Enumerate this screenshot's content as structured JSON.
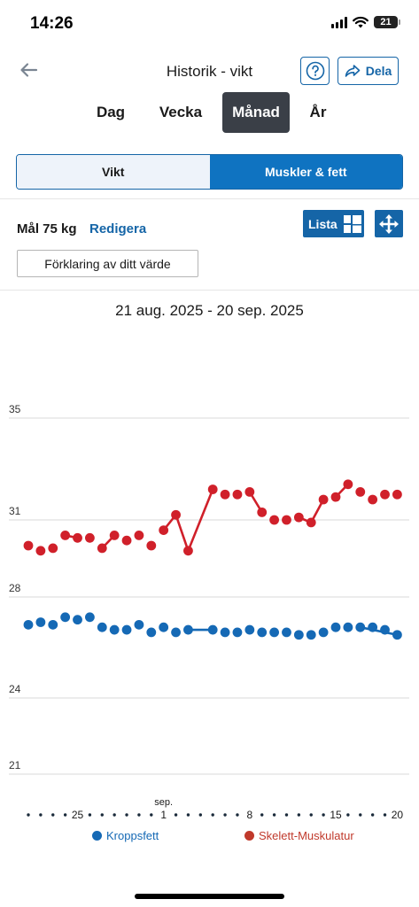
{
  "status_bar": {
    "time": "14:26",
    "battery": "21"
  },
  "header": {
    "title": "Historik - vikt",
    "share_label": "Dela"
  },
  "period_tabs": [
    {
      "label": "Dag",
      "active": false
    },
    {
      "label": "Vecka",
      "active": false
    },
    {
      "label": "Månad",
      "active": true
    },
    {
      "label": "År",
      "active": false
    }
  ],
  "metric_toggle": {
    "left": "Vikt",
    "right": "Muskler & fett",
    "active": "right"
  },
  "goal": {
    "label": "Mål 75 kg",
    "edit": "Redigera"
  },
  "list_button": "Lista",
  "explain_button": "Förklaring av ditt värde",
  "date_range": "21 aug. 2025 - 20 sep. 2025",
  "colors": {
    "accent": "#1565a7",
    "fat": "#1569b5",
    "muscle": "#d0202a"
  },
  "chart_data": {
    "type": "scatter",
    "yticks": [
      21,
      24,
      28,
      31,
      35
    ],
    "x_tick_labels": [
      {
        "day": 5,
        "label": "25"
      },
      {
        "day": 12,
        "label": "1",
        "month": "sep."
      },
      {
        "day": 19,
        "label": "8"
      },
      {
        "day": 26,
        "label": "15"
      },
      {
        "day": 31,
        "label": "20"
      }
    ],
    "days": 31,
    "series": [
      {
        "name": "Kroppsfett",
        "color": "#1569b5",
        "points": [
          [
            1,
            26.9
          ],
          [
            2,
            27.0
          ],
          [
            3,
            26.9
          ],
          [
            4,
            27.2
          ],
          [
            5,
            27.1
          ],
          [
            6,
            27.2
          ],
          [
            7,
            26.8
          ],
          [
            8,
            26.7
          ],
          [
            9,
            26.7
          ],
          [
            10,
            26.9
          ],
          [
            11,
            26.6
          ],
          [
            12,
            26.8
          ],
          [
            13,
            26.6
          ],
          [
            14,
            26.7
          ],
          [
            16,
            26.7
          ],
          [
            17,
            26.6
          ],
          [
            18,
            26.6
          ],
          [
            19,
            26.7
          ],
          [
            20,
            26.6
          ],
          [
            21,
            26.6
          ],
          [
            22,
            26.6
          ],
          [
            23,
            26.5
          ],
          [
            24,
            26.5
          ],
          [
            25,
            26.6
          ],
          [
            26,
            26.8
          ],
          [
            27,
            26.8
          ],
          [
            28,
            26.8
          ],
          [
            29,
            26.8
          ],
          [
            30,
            26.7
          ],
          [
            31,
            26.5
          ]
        ],
        "lines": [
          [
            14,
            16
          ],
          [
            28,
            31
          ]
        ]
      },
      {
        "name": "Skelett-Muskulatur",
        "color": "#d0202a",
        "points": [
          [
            1,
            30.0
          ],
          [
            2,
            29.8
          ],
          [
            3,
            29.9
          ],
          [
            4,
            30.4
          ],
          [
            5,
            30.3
          ],
          [
            6,
            30.3
          ],
          [
            7,
            29.9
          ],
          [
            8,
            30.4
          ],
          [
            9,
            30.2
          ],
          [
            10,
            30.4
          ],
          [
            11,
            30.0
          ],
          [
            12,
            30.6
          ],
          [
            13,
            31.2
          ],
          [
            14,
            29.8
          ],
          [
            16,
            32.2
          ],
          [
            17,
            32.0
          ],
          [
            18,
            32.0
          ],
          [
            19,
            32.1
          ],
          [
            20,
            31.3
          ],
          [
            21,
            31.0
          ],
          [
            22,
            31.0
          ],
          [
            23,
            31.1
          ],
          [
            24,
            30.9
          ],
          [
            25,
            31.8
          ],
          [
            26,
            31.9
          ],
          [
            27,
            32.4
          ],
          [
            28,
            32.1
          ],
          [
            29,
            31.8
          ],
          [
            30,
            32.0
          ],
          [
            31,
            32.0
          ]
        ],
        "lines": [
          [
            4,
            5
          ],
          [
            7,
            8
          ],
          [
            12,
            13
          ],
          [
            13,
            14
          ],
          [
            14,
            16
          ],
          [
            19,
            20
          ],
          [
            23,
            24
          ],
          [
            24,
            25
          ],
          [
            26,
            27
          ]
        ]
      }
    ]
  }
}
